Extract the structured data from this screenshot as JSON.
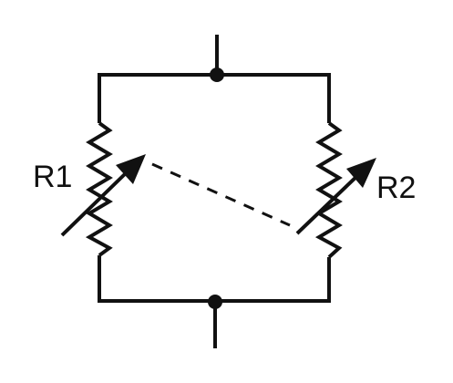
{
  "diagram": {
    "labels": {
      "r1": "R1",
      "r2": "R2"
    }
  }
}
